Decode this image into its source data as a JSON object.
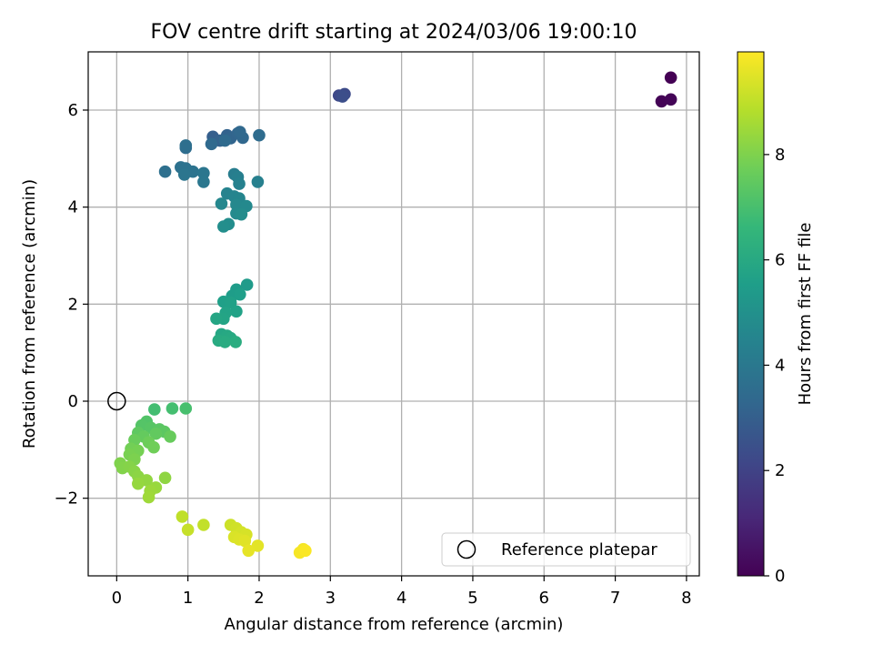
{
  "chart_data": {
    "type": "scatter",
    "title": "FOV centre drift starting at 2024/03/06 19:00:10",
    "xlabel": "Angular distance from reference (arcmin)",
    "ylabel": "Rotation from reference (arcmin)",
    "xlim": [
      -0.4,
      8.18
    ],
    "ylim": [
      -3.6,
      7.2
    ],
    "xticks": [
      0,
      1,
      2,
      3,
      4,
      5,
      6,
      7,
      8
    ],
    "yticks": [
      -2,
      0,
      2,
      4,
      6
    ],
    "grid": true,
    "legend": {
      "position": "lower right",
      "entries": [
        "Reference platepar"
      ]
    },
    "reference": {
      "name": "Reference platepar",
      "x": 0,
      "y": 0
    },
    "colorbar": {
      "label": "Hours from first FF file",
      "colormap": "viridis",
      "range": [
        0,
        9.95
      ],
      "ticks": [
        0,
        2,
        4,
        6,
        8
      ]
    },
    "colors": [
      "#440154",
      "#482878",
      "#3e4989",
      "#31688e",
      "#26828e",
      "#1f9e89",
      "#35b779",
      "#6ece58",
      "#b5de2b",
      "#fde725"
    ],
    "series": [
      {
        "points": [
          [
            7.78,
            6.67,
            0.0
          ],
          [
            7.65,
            6.18,
            0.05
          ],
          [
            7.78,
            6.22,
            0.1
          ],
          [
            3.12,
            6.3,
            2.2
          ],
          [
            3.2,
            6.33,
            2.3
          ],
          [
            3.17,
            6.28,
            2.4
          ],
          [
            1.35,
            5.45,
            3.0
          ],
          [
            1.45,
            5.37,
            3.1
          ],
          [
            1.55,
            5.48,
            3.15
          ],
          [
            1.6,
            5.42,
            3.2
          ],
          [
            1.7,
            5.52,
            3.25
          ],
          [
            1.77,
            5.43,
            3.3
          ],
          [
            1.73,
            5.55,
            3.35
          ],
          [
            1.33,
            5.3,
            3.4
          ],
          [
            1.52,
            5.37,
            3.45
          ],
          [
            2.0,
            5.48,
            3.5
          ],
          [
            0.97,
            5.22,
            3.55
          ],
          [
            0.97,
            5.27,
            3.6
          ],
          [
            0.68,
            4.73,
            3.65
          ],
          [
            0.9,
            4.82,
            3.7
          ],
          [
            0.97,
            4.8,
            3.75
          ],
          [
            1.07,
            4.73,
            3.8
          ],
          [
            0.95,
            4.67,
            3.85
          ],
          [
            1.22,
            4.7,
            3.9
          ],
          [
            1.22,
            4.52,
            3.95
          ],
          [
            1.65,
            4.68,
            4.2
          ],
          [
            1.7,
            4.62,
            4.3
          ],
          [
            1.98,
            4.52,
            4.35
          ],
          [
            1.72,
            4.48,
            4.4
          ],
          [
            1.55,
            4.28,
            4.45
          ],
          [
            1.65,
            4.22,
            4.5
          ],
          [
            1.72,
            4.18,
            4.55
          ],
          [
            1.47,
            4.07,
            4.6
          ],
          [
            1.68,
            4.05,
            4.65
          ],
          [
            1.82,
            4.02,
            4.7
          ],
          [
            1.68,
            3.87,
            4.75
          ],
          [
            1.75,
            3.85,
            4.8
          ],
          [
            1.57,
            3.65,
            4.85
          ],
          [
            1.5,
            3.6,
            4.9
          ],
          [
            1.83,
            2.4,
            5.4
          ],
          [
            1.68,
            2.3,
            5.45
          ],
          [
            1.62,
            2.17,
            5.5
          ],
          [
            1.73,
            2.2,
            5.55
          ],
          [
            1.5,
            2.05,
            5.6
          ],
          [
            1.6,
            2.03,
            5.65
          ],
          [
            1.68,
            1.85,
            5.7
          ],
          [
            1.53,
            1.82,
            5.75
          ],
          [
            1.5,
            1.7,
            5.8
          ],
          [
            1.4,
            1.7,
            5.85
          ],
          [
            1.47,
            1.38,
            5.9
          ],
          [
            1.55,
            1.35,
            5.95
          ],
          [
            1.6,
            1.3,
            6.0
          ],
          [
            1.43,
            1.25,
            6.05
          ],
          [
            1.52,
            1.22,
            6.1
          ],
          [
            1.67,
            1.22,
            6.15
          ],
          [
            0.53,
            -0.17,
            6.9
          ],
          [
            0.78,
            -0.15,
            6.95
          ],
          [
            0.97,
            -0.15,
            7.0
          ],
          [
            0.42,
            -0.42,
            7.2
          ],
          [
            0.35,
            -0.5,
            7.25
          ],
          [
            0.48,
            -0.55,
            7.3
          ],
          [
            0.6,
            -0.58,
            7.35
          ],
          [
            0.67,
            -0.63,
            7.4
          ],
          [
            0.3,
            -0.65,
            7.45
          ],
          [
            0.55,
            -0.67,
            7.5
          ],
          [
            0.38,
            -0.73,
            7.55
          ],
          [
            0.75,
            -0.73,
            7.6
          ],
          [
            0.25,
            -0.8,
            7.65
          ],
          [
            0.45,
            -0.85,
            7.7
          ],
          [
            0.52,
            -0.95,
            7.75
          ],
          [
            0.2,
            -0.98,
            7.8
          ],
          [
            0.3,
            -1.02,
            7.85
          ],
          [
            0.18,
            -1.1,
            7.9
          ],
          [
            0.25,
            -1.2,
            7.95
          ],
          [
            0.05,
            -1.28,
            8.0
          ],
          [
            0.08,
            -1.38,
            8.05
          ],
          [
            0.18,
            -1.35,
            8.1
          ],
          [
            0.25,
            -1.45,
            8.15
          ],
          [
            0.3,
            -1.55,
            8.2
          ],
          [
            0.68,
            -1.58,
            8.25
          ],
          [
            0.42,
            -1.63,
            8.3
          ],
          [
            0.3,
            -1.7,
            8.35
          ],
          [
            0.55,
            -1.78,
            8.4
          ],
          [
            0.47,
            -1.85,
            8.45
          ],
          [
            0.45,
            -1.98,
            8.5
          ],
          [
            0.92,
            -2.38,
            9.0
          ],
          [
            1.22,
            -2.55,
            9.05
          ],
          [
            1.0,
            -2.65,
            9.1
          ],
          [
            1.6,
            -2.55,
            9.2
          ],
          [
            1.68,
            -2.62,
            9.25
          ],
          [
            1.75,
            -2.7,
            9.3
          ],
          [
            1.82,
            -2.75,
            9.35
          ],
          [
            1.65,
            -2.8,
            9.4
          ],
          [
            1.72,
            -2.85,
            9.45
          ],
          [
            1.8,
            -2.88,
            9.5
          ],
          [
            1.98,
            -2.98,
            9.55
          ],
          [
            1.85,
            -3.08,
            9.6
          ],
          [
            2.62,
            -3.05,
            9.8
          ],
          [
            2.57,
            -3.12,
            9.85
          ],
          [
            2.65,
            -3.08,
            9.9
          ]
        ]
      }
    ]
  }
}
